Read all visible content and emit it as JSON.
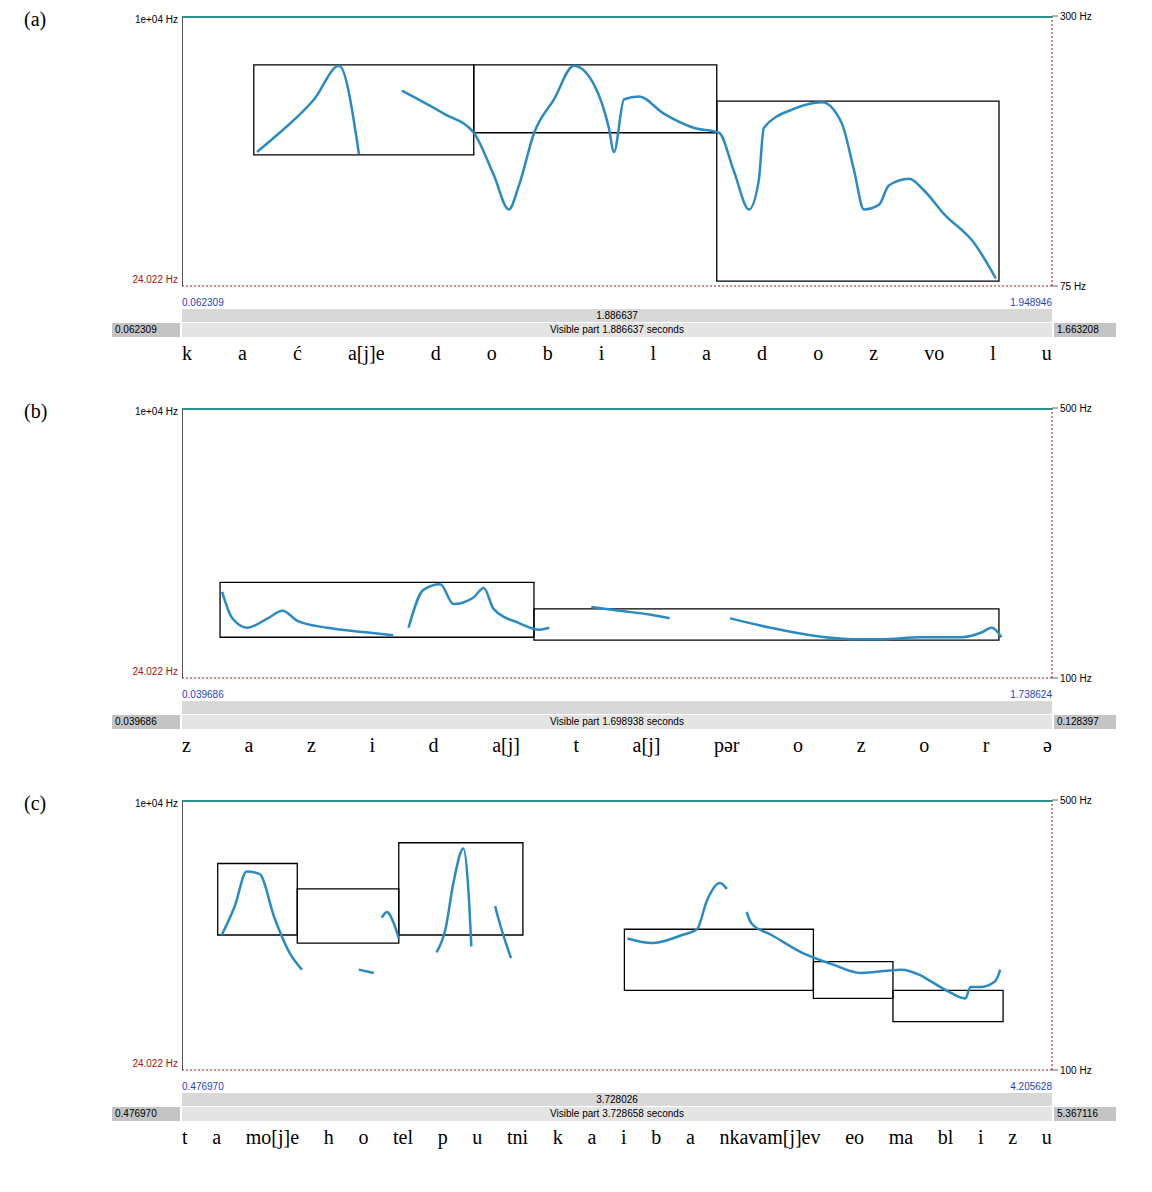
{
  "chart_data": [
    {
      "type": "line",
      "panel": "(a)",
      "color": "#2a8bc4",
      "grid": false,
      "x": [
        0.225,
        0.262,
        0.349,
        0.403,
        0.446,
        0.49,
        0.539,
        0.63,
        0.695,
        0.739,
        0.771,
        0.793,
        0.826,
        0.869,
        0.912,
        0.956,
        0.988,
        0.999,
        1.021,
        1.053,
        1.107,
        1.173,
        1.227,
        1.259,
        1.292,
        1.313,
        1.324,
        1.389,
        1.45,
        1.493,
        1.52,
        1.541,
        1.574,
        1.595,
        1.639,
        1.671,
        1.715,
        1.78,
        1.827
      ],
      "values": [
        186.7,
        198.7,
        230.6,
        258.5,
        185.1,
        null,
        237.8,
        218.6,
        202.7,
        166.8,
        138.8,
        158.8,
        202.7,
        230.6,
        258.5,
        242.6,
        206.7,
        186.7,
        230.6,
        233.0,
        218.6,
        206.7,
        202.7,
        170.8,
        138.8,
        162.8,
        206.7,
        222.6,
        228.2,
        210.7,
        170.8,
        138.8,
        142.8,
        158.8,
        164.4,
        154.8,
        134.9,
        110.9,
        81.4
      ],
      "xlim": [
        0.062309,
        1.948946
      ],
      "xticks": [
        0.062309,
        1.948946
      ],
      "ylim": [
        75,
        300
      ],
      "yticks": [
        {
          "value": 75,
          "label": "75 Hz"
        },
        {
          "value": 300,
          "label": "300 Hz"
        }
      ],
      "boxes": [
        {
          "x": [
            0.218,
            0.695
          ],
          "y": [
            184.3,
            259.3
          ]
        },
        {
          "x": [
            0.695,
            1.222
          ],
          "y": [
            202.7,
            259.3
          ]
        },
        {
          "x": [
            1.222,
            1.834
          ],
          "y": [
            79.0,
            229.0
          ]
        }
      ],
      "spectrogram_axis": {
        "top": "1e+04 Hz",
        "bottom": "24.022 Hz"
      },
      "time_bar": {
        "left": "0.062309",
        "center": "1.886637",
        "visible": "Visible part 1.886637 seconds",
        "right": "1.663208"
      },
      "transcription": [
        "k",
        "a",
        "ć",
        "a[j]e",
        "d",
        "o",
        "b",
        "i",
        "l",
        "a",
        "d",
        "o",
        "z",
        "vo",
        "l",
        "u"
      ]
    },
    {
      "type": "line",
      "panel": "(b)",
      "color": "#2a8bc4",
      "grid": false,
      "x": [
        0.118,
        0.138,
        0.167,
        0.207,
        0.236,
        0.266,
        0.324,
        0.403,
        0.452,
        0.467,
        0.482,
        0.511,
        0.544,
        0.57,
        0.609,
        0.629,
        0.648,
        0.698,
        0.737,
        0.757,
        0.8,
        0.839,
        0.894,
        0.953,
        0.992,
        1.05,
        1.11,
        1.189,
        1.267,
        1.346,
        1.405,
        1.483,
        1.562,
        1.601,
        1.621,
        1.64
      ],
      "values": [
        227.7,
        188.4,
        174.4,
        188.4,
        199.6,
        184.2,
        174.4,
        167.4,
        163.2,
        null,
        174.4,
        230.5,
        238.9,
        209.5,
        219.3,
        233.3,
        202.5,
        181.4,
        171.6,
        174.4,
        null,
        205.3,
        199.6,
        194.0,
        188.4,
        null,
        188.4,
        174.4,
        163.2,
        157.5,
        157.5,
        160.4,
        160.4,
        167.4,
        174.4,
        160.4
      ],
      "xlim": [
        0.039686,
        1.738624
      ],
      "xticks": [
        0.039686,
        1.738624
      ],
      "ylim": [
        100,
        500
      ],
      "yticks": [
        {
          "value": 100,
          "label": "100 Hz"
        },
        {
          "value": 500,
          "label": "500 Hz"
        }
      ],
      "boxes": [
        {
          "x": [
            0.114,
            0.727
          ],
          "y": [
            160.4,
            241.8
          ]
        },
        {
          "x": [
            0.727,
            1.635
          ],
          "y": [
            156.1,
            202.5
          ]
        }
      ],
      "spectrogram_axis": {
        "top": "1e+04 Hz",
        "bottom": "24.022 Hz"
      },
      "time_bar": {
        "left": "0.039686",
        "visible": "Visible part 1.698938 seconds",
        "right": "0.128397"
      },
      "transcription": [
        "z",
        "a",
        "z",
        "i",
        "d",
        "a[j]",
        "t",
        "a[j]",
        "pər",
        "o",
        "z",
        "o",
        "r",
        "ə"
      ]
    },
    {
      "type": "line",
      "panel": "(c)",
      "color": "#2a8bc4",
      "grid": false,
      "x": [
        0.647,
        0.703,
        0.754,
        0.809,
        0.873,
        0.937,
        0.991,
        1.1,
        1.235,
        1.299,
        1.32,
        1.333,
        1.355,
        1.385,
        1.406,
        1.5,
        1.568,
        1.606,
        1.64,
        1.683,
        1.704,
        1.717,
        1.77,
        1.819,
        1.832,
        1.862,
        1.887,
        2.1,
        2.386,
        2.492,
        2.62,
        2.684,
        2.727,
        2.782,
        2.812,
        2.85,
        2.897,
        2.918,
        3.004,
        3.131,
        3.259,
        3.387,
        3.558,
        3.643,
        3.685,
        3.771,
        3.835,
        3.856,
        3.898,
        3.962,
        3.984
      ],
      "values": [
        300.0,
        342.7,
        394.0,
        390.5,
        325.6,
        274.3,
        248.7,
        null,
        248.7,
        243.6,
        null,
        325.6,
        334.1,
        317.0,
        294.8,
        null,
        274.3,
        308.5,
        376.9,
        428.1,
        368.3,
        282.9,
        null,
        342.7,
        325.6,
        291.4,
        265.8,
        null,
        294.8,
        288.0,
        300.0,
        308.5,
        351.2,
        376.9,
        368.3,
        null,
        334.1,
        317.0,
        300.0,
        274.3,
        257.2,
        243.6,
        248.7,
        240.1,
        231.6,
        214.5,
        206.0,
        223.0,
        223.0,
        231.6,
        248.7
      ],
      "xlim": [
        0.47697,
        4.205628
      ],
      "xticks": [
        {
          "value": 0.47697,
          "label": "0.476970"
        },
        4.205628
      ],
      "ylim": [
        100,
        500
      ],
      "yticks": [
        {
          "value": 100,
          "label": "100 Hz"
        },
        {
          "value": 500,
          "label": "500 Hz"
        }
      ],
      "boxes": [
        {
          "x": [
            0.63,
            0.971
          ],
          "y": [
            300.0,
            405.9
          ]
        },
        {
          "x": [
            0.971,
            1.406
          ],
          "y": [
            288.0,
            368.3
          ]
        },
        {
          "x": [
            1.406,
            1.938
          ],
          "y": [
            300.0,
            436.7
          ]
        },
        {
          "x": [
            2.373,
            3.183
          ],
          "y": [
            217.9,
            308.5
          ]
        },
        {
          "x": [
            3.183,
            3.524
          ],
          "y": [
            206.0,
            260.6
          ]
        },
        {
          "x": [
            3.524,
            3.996
          ],
          "y": [
            171.8,
            217.9
          ]
        }
      ],
      "spectrogram_axis": {
        "top": "1e+04 Hz",
        "bottom": "24.022 Hz"
      },
      "time_bar": {
        "left": "0.476970",
        "center": "3.728026",
        "visible": "Visible part 3.728658 seconds",
        "right": "5.367116"
      },
      "transcription": [
        "t",
        "a",
        "mo[j]e",
        "h",
        "o",
        "tel",
        "p",
        "u",
        "tni",
        "k",
        "a",
        "i",
        "b",
        "a",
        "nkavam[j]ev",
        "eo",
        "ma",
        "bl",
        "i",
        "z",
        "u"
      ]
    }
  ]
}
